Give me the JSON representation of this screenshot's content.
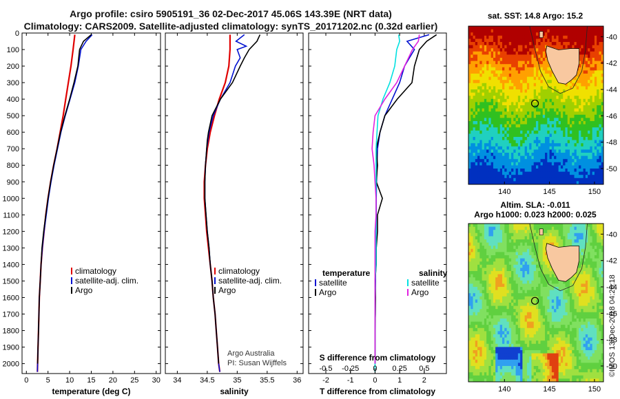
{
  "title_line1": "Argo profile: csiro 5905191_36 02-Dec-2017 45.06S 143.39E (NRT data)",
  "title_line2": "Climatology: CARS2009. Satellite-adjusted climatology: synTS_20171202.nc (0.32d earlier)",
  "colors": {
    "climatology": "#e00000",
    "satellite": "#0010d0",
    "argo": "#000000",
    "satellite_s": "#00e0e0",
    "argo_s": "#e020e0"
  },
  "chart_data": [
    {
      "type": "line",
      "panel": "temperature",
      "xlabel": "temperature (deg C)",
      "xlim": [
        -1,
        31
      ],
      "xticks": [
        0,
        5,
        10,
        15,
        20,
        25,
        30
      ],
      "ylim": [
        2060,
        0
      ],
      "yticks": [
        0,
        100,
        200,
        300,
        400,
        500,
        600,
        700,
        800,
        900,
        1000,
        1100,
        1200,
        1300,
        1400,
        1500,
        1600,
        1700,
        1800,
        1900,
        2000
      ],
      "legend_placement": "lower-center",
      "series": [
        {
          "name": "climatology",
          "color": "#e00000",
          "y": [
            10,
            100,
            200,
            300,
            400,
            500,
            600,
            700,
            800,
            900,
            1000,
            1100,
            1200,
            1300,
            1400,
            1500,
            1600,
            1700,
            1800,
            1900,
            2000,
            2050
          ],
          "x": [
            11.2,
            10.8,
            10.3,
            9.7,
            9.1,
            8.5,
            7.8,
            7.1,
            6.3,
            5.6,
            5.0,
            4.5,
            4.1,
            3.7,
            3.4,
            3.2,
            3.0,
            2.9,
            2.8,
            2.7,
            2.6,
            2.55
          ]
        },
        {
          "name": "satellite-adj. clim.",
          "color": "#0010d0",
          "y": [
            10,
            50,
            100,
            200,
            300,
            400,
            500,
            600,
            700,
            800,
            900,
            1000,
            1100,
            1200,
            1300,
            1400,
            1500,
            1600,
            1700,
            1800,
            1900,
            2000,
            2050
          ],
          "x": [
            15.2,
            13.8,
            12.6,
            12.0,
            11.2,
            10.1,
            9.0,
            8.0,
            7.2,
            6.4,
            5.7,
            5.1,
            4.6,
            4.1,
            3.7,
            3.4,
            3.2,
            3.0,
            2.9,
            2.8,
            2.7,
            2.6,
            2.55
          ]
        },
        {
          "name": "Argo",
          "color": "#000000",
          "y": [
            10,
            50,
            100,
            200,
            300,
            400,
            500,
            600,
            700,
            800,
            900,
            1000,
            1100,
            1200,
            1300,
            1400,
            1500,
            1600,
            1700,
            1800,
            1900,
            2000
          ],
          "x": [
            15.0,
            13.2,
            12.3,
            11.9,
            11.0,
            10.0,
            8.9,
            7.9,
            7.1,
            6.3,
            5.6,
            5.0,
            4.5,
            4.0,
            3.6,
            3.4,
            3.2,
            3.0,
            2.9,
            2.8,
            2.7,
            2.6
          ]
        }
      ]
    },
    {
      "type": "line",
      "panel": "salinity",
      "xlabel": "salinity",
      "xlim": [
        33.8,
        36.1
      ],
      "xticks": [
        34,
        34.5,
        35,
        35.5,
        36
      ],
      "ylim": [
        2060,
        0
      ],
      "legend_placement": "lower-center",
      "series": [
        {
          "name": "climatology",
          "color": "#e00000",
          "y": [
            10,
            100,
            200,
            300,
            400,
            500,
            600,
            700,
            800,
            900,
            1000,
            1100,
            1200,
            1300,
            1400,
            1500,
            1600,
            1700,
            1800,
            1900,
            2000,
            2050
          ],
          "x": [
            34.88,
            34.88,
            34.86,
            34.8,
            34.7,
            34.62,
            34.55,
            34.5,
            34.47,
            34.45,
            34.45,
            34.47,
            34.49,
            34.52,
            34.55,
            34.58,
            34.6,
            34.63,
            34.65,
            34.67,
            34.69,
            34.71
          ]
        },
        {
          "name": "satellite-adj. clim.",
          "color": "#0010d0",
          "y": [
            10,
            50,
            80,
            100,
            150,
            200,
            300,
            400,
            500,
            600,
            700,
            800,
            900,
            1000,
            1100,
            1200,
            1300,
            1400,
            1500,
            1600,
            1700,
            1800,
            1900,
            2000,
            2050
          ],
          "x": [
            35.12,
            34.98,
            35.15,
            35.0,
            35.05,
            34.97,
            34.88,
            34.72,
            34.6,
            34.53,
            34.49,
            34.47,
            34.46,
            34.46,
            34.48,
            34.5,
            34.53,
            34.55,
            34.58,
            34.6,
            34.63,
            34.65,
            34.67,
            34.69,
            34.71
          ]
        },
        {
          "name": "Argo",
          "color": "#000000",
          "y": [
            10,
            50,
            100,
            150,
            200,
            300,
            400,
            500,
            600,
            650,
            700,
            800,
            900,
            1000,
            1100,
            1200,
            1300,
            1400,
            1500,
            1600,
            1700,
            1800,
            1900,
            2000
          ],
          "x": [
            35.38,
            35.33,
            35.2,
            35.12,
            35.05,
            34.92,
            34.72,
            34.58,
            34.52,
            34.5,
            34.49,
            34.47,
            34.46,
            34.46,
            34.48,
            34.5,
            34.53,
            34.55,
            34.58,
            34.6,
            34.63,
            34.65,
            34.67,
            34.69
          ]
        }
      ]
    },
    {
      "type": "line",
      "panel": "difference",
      "xlabel": "T difference from climatology",
      "xlim": [
        -2.7,
        2.9
      ],
      "xticks": [
        -2,
        -1,
        0,
        1,
        2
      ],
      "secondary_xlabel": "S difference from climatology",
      "secondary_xlim": [
        -0.675,
        0.725
      ],
      "secondary_xticks": [
        -0.5,
        -0.25,
        0,
        0.25,
        0.5
      ],
      "secondary_xticklabels": [
        "-0.5",
        "-0.25",
        "0",
        "0.25",
        "0.5"
      ],
      "ylim": [
        2060,
        0
      ],
      "legend_placement": "lower-center",
      "legend_headers": {
        "temperature": "temperature",
        "salinity": "salinity"
      },
      "series": [
        {
          "name": "satellite",
          "quantity": "temperature",
          "color": "#0010d0",
          "y": [
            10,
            50,
            100,
            150,
            200,
            300,
            400,
            500,
            600,
            700,
            800,
            900,
            1000,
            1100,
            1200,
            1300,
            1400,
            1500,
            1600,
            1700,
            1800,
            1900,
            2000
          ],
          "x": [
            2.2,
            1.3,
            1.6,
            1.4,
            1.2,
            1.0,
            0.7,
            0.4,
            0.2,
            0.1,
            0.08,
            0.06,
            0.05,
            0.05,
            0.04,
            0.03,
            0.02,
            0.02,
            0.01,
            0.01,
            0.0,
            0.0,
            0.0
          ]
        },
        {
          "name": "Argo",
          "quantity": "temperature",
          "color": "#000000",
          "y": [
            10,
            50,
            100,
            200,
            300,
            400,
            500,
            600,
            700,
            800,
            900,
            1000,
            1100,
            1200,
            1300,
            1400,
            1500,
            1600,
            1700,
            1800,
            1900,
            2000
          ],
          "x": [
            2.5,
            2.1,
            1.8,
            1.6,
            1.5,
            0.9,
            0.4,
            0.2,
            0.05,
            0.1,
            0.05,
            0.3,
            0.1,
            0.1,
            0.05,
            0.05,
            0.0,
            0.02,
            0.01,
            0.0,
            0.0,
            0.0
          ]
        },
        {
          "name": "satellite",
          "quantity": "salinity",
          "color": "#00e0e0",
          "y": [
            10,
            50,
            100,
            200,
            300,
            400,
            500,
            600,
            700,
            800,
            900,
            1000,
            1100,
            1200,
            1300,
            1400,
            1500,
            1600,
            1700,
            1800,
            1900,
            2000,
            2050
          ],
          "x": [
            0.24,
            0.25,
            0.22,
            0.2,
            0.15,
            0.08,
            0.03,
            0.02,
            0.01,
            0.01,
            0.01,
            0.01,
            0.01,
            0.01,
            0.01,
            0.01,
            0.0,
            0.0,
            0.0,
            0.0,
            0.0,
            0.0,
            0.0
          ]
        },
        {
          "name": "Argo",
          "quantity": "salinity",
          "color": "#e020e0",
          "y": [
            10,
            50,
            100,
            200,
            300,
            400,
            500,
            600,
            700,
            800,
            900,
            1000,
            1100,
            1200,
            1300,
            1400,
            1500,
            1600,
            1700,
            1800,
            1900,
            2000
          ],
          "x": [
            0.45,
            0.44,
            0.38,
            0.3,
            0.22,
            0.1,
            0.0,
            -0.02,
            -0.03,
            -0.01,
            0.0,
            0.01,
            0.01,
            0.0,
            0.0,
            0.0,
            0.0,
            0.0,
            0.0,
            0.0,
            0.0,
            0.0
          ]
        }
      ]
    },
    {
      "type": "heatmap",
      "panel": "sst_map",
      "title": "sat. SST: 14.8 Argo: 15.2",
      "xlim": [
        136,
        151
      ],
      "ylim": [
        -51.2,
        -39.2
      ],
      "xticks": [
        140,
        145,
        150
      ],
      "yticks": [
        -40,
        -42,
        -44,
        -46,
        -48,
        -50
      ],
      "profile_location": {
        "lon": 143.39,
        "lat": -45.06
      }
    },
    {
      "type": "heatmap",
      "panel": "sla_map",
      "title_line1": "Altim. SLA: -0.011",
      "title_line2": "Argo h1000: 0.023 h2000: 0.025",
      "xlim": [
        136,
        151
      ],
      "ylim": [
        -51.2,
        -39.2
      ],
      "xticks": [
        140,
        145,
        150
      ],
      "yticks": [
        -40,
        -42,
        -44,
        -46,
        -48,
        -50
      ],
      "profile_location": {
        "lon": 143.39,
        "lat": -45.06
      }
    }
  ],
  "credits": {
    "line1": "Argo Australia",
    "line2": "PI: Susan Wijffels"
  },
  "watermark": "©IMOS 13-Dec-2018 04:26:18"
}
